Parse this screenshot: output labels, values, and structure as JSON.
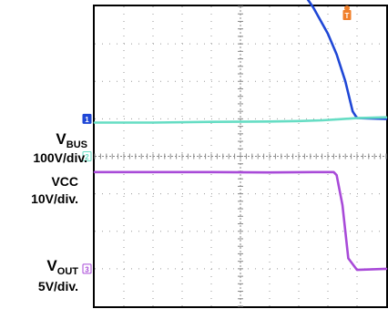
{
  "chart_data": {
    "type": "line",
    "grid": true,
    "divisions": {
      "x": 10,
      "y": 8
    },
    "trigger_marker": "T",
    "channels": [
      {
        "id": "1",
        "name_main": "V",
        "name_sub": "BUS",
        "scale": "100V/div.",
        "color": "#1f47d6",
        "ground_div": 5.0,
        "x": [
          0.0,
          0.12,
          0.25,
          0.3,
          0.4,
          0.5,
          0.65,
          0.8,
          1.0,
          1.5,
          2.0,
          2.5,
          3.0,
          3.5,
          4.0,
          4.5,
          5.0,
          5.5,
          6.0,
          6.5,
          7.0,
          7.5,
          8.0,
          8.3,
          8.6,
          8.85,
          9.0,
          10.0
        ],
        "y_div": [
          7.04,
          7.0,
          7.08,
          7.03,
          7.1,
          7.14,
          7.1,
          7.06,
          6.99,
          6.82,
          6.63,
          6.43,
          6.21,
          5.97,
          5.71,
          5.43,
          5.12,
          4.78,
          4.41,
          4.0,
          3.53,
          2.97,
          2.27,
          1.72,
          1.0,
          0.2,
          0.02,
          0.0
        ]
      },
      {
        "id": "2",
        "name_main": "VCC",
        "name_sub": "",
        "scale": "10V/div.",
        "color": "#66ddc4",
        "ground_div": 4.0,
        "x": [
          0.0,
          2.0,
          4.0,
          6.0,
          7.0,
          7.8,
          8.4,
          9.0,
          10.0
        ],
        "y_div": [
          0.9,
          0.9,
          0.92,
          0.93,
          0.94,
          0.96,
          0.99,
          1.02,
          1.04
        ]
      },
      {
        "id": "3",
        "name_main": "V",
        "name_sub": "OUT",
        "scale": "5V/div.",
        "color": "#a84ad8",
        "ground_div": 1.0,
        "x": [
          0.0,
          2.0,
          4.0,
          6.0,
          7.5,
          8.2,
          8.3,
          8.5,
          8.7,
          9.0,
          10.0
        ],
        "y_div": [
          2.58,
          2.58,
          2.58,
          2.57,
          2.58,
          2.58,
          2.5,
          1.7,
          0.28,
          -0.03,
          0.0
        ]
      }
    ]
  }
}
